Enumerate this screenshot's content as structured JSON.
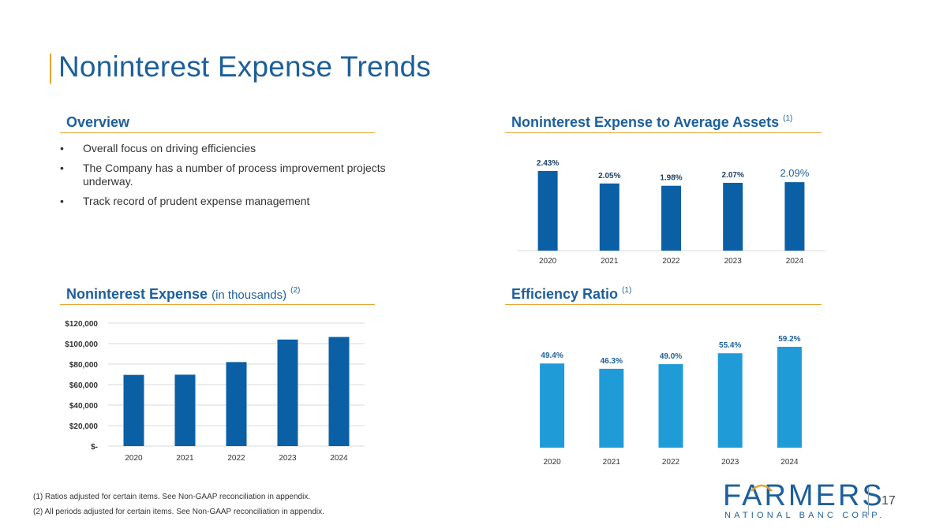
{
  "page": {
    "title": "Noninterest Expense Trends",
    "page_number": "17",
    "footnotes": [
      "(1) Ratios adjusted for certain items. See Non-GAAP reconciliation in appendix.",
      "(2) All periods adjusted for certain items. See Non-GAAP reconciliation in appendix."
    ]
  },
  "overview": {
    "heading": "Overview",
    "bullets": [
      "Overall focus on driving efficiencies",
      "The Company has a number of process improvement projects underway.",
      "Track record of prudent expense management"
    ]
  },
  "sections": {
    "assets_title": "Noninterest Expense to Average Assets",
    "assets_note": "(1)",
    "expense_title": "Noninterest Expense",
    "expense_sub": "(in thousands)",
    "expense_note": "(2)",
    "efficiency_title": "Efficiency Ratio",
    "efficiency_note": "(1)"
  },
  "logo": {
    "name": "FARMERS",
    "subtitle": "NATIONAL BANC CORP.",
    "colors": {
      "primary": "#1d5f9b",
      "accent": "#e3a32e",
      "teal": "#2aa6b8"
    }
  },
  "chart_data": [
    {
      "id": "assets",
      "type": "bar",
      "title": "Noninterest Expense to Average Assets (1)",
      "categories": [
        "2020",
        "2021",
        "2022",
        "2023",
        "2024"
      ],
      "values": [
        2.43,
        2.05,
        1.98,
        2.07,
        2.09
      ],
      "labels": [
        "2.43%",
        "2.05%",
        "1.98%",
        "2.07%",
        "2.09%"
      ],
      "ylim": [
        0,
        2.43
      ],
      "color": "#0b5fa5",
      "grid": false
    },
    {
      "id": "expense",
      "type": "bar",
      "title": "Noninterest Expense (in thousands) (2)",
      "categories": [
        "2020",
        "2021",
        "2022",
        "2023",
        "2024"
      ],
      "values": [
        69500,
        69700,
        82000,
        104000,
        106500
      ],
      "ylim": [
        0,
        120000
      ],
      "yticks": [
        "$-",
        "$20,000",
        "$40,000",
        "$60,000",
        "$80,000",
        "$100,000",
        "$120,000"
      ],
      "color": "#0b5fa5",
      "grid": true
    },
    {
      "id": "efficiency",
      "type": "bar",
      "title": "Efficiency Ratio (1)",
      "categories": [
        "2020",
        "2021",
        "2022",
        "2023",
        "2024"
      ],
      "values": [
        49.4,
        46.3,
        49.0,
        55.4,
        59.2
      ],
      "labels": [
        "49.4%",
        "46.3%",
        "49.0%",
        "55.4%",
        "59.2%"
      ],
      "ylim": [
        0,
        59.2
      ],
      "color": "#1f9bd7",
      "grid": false
    }
  ]
}
